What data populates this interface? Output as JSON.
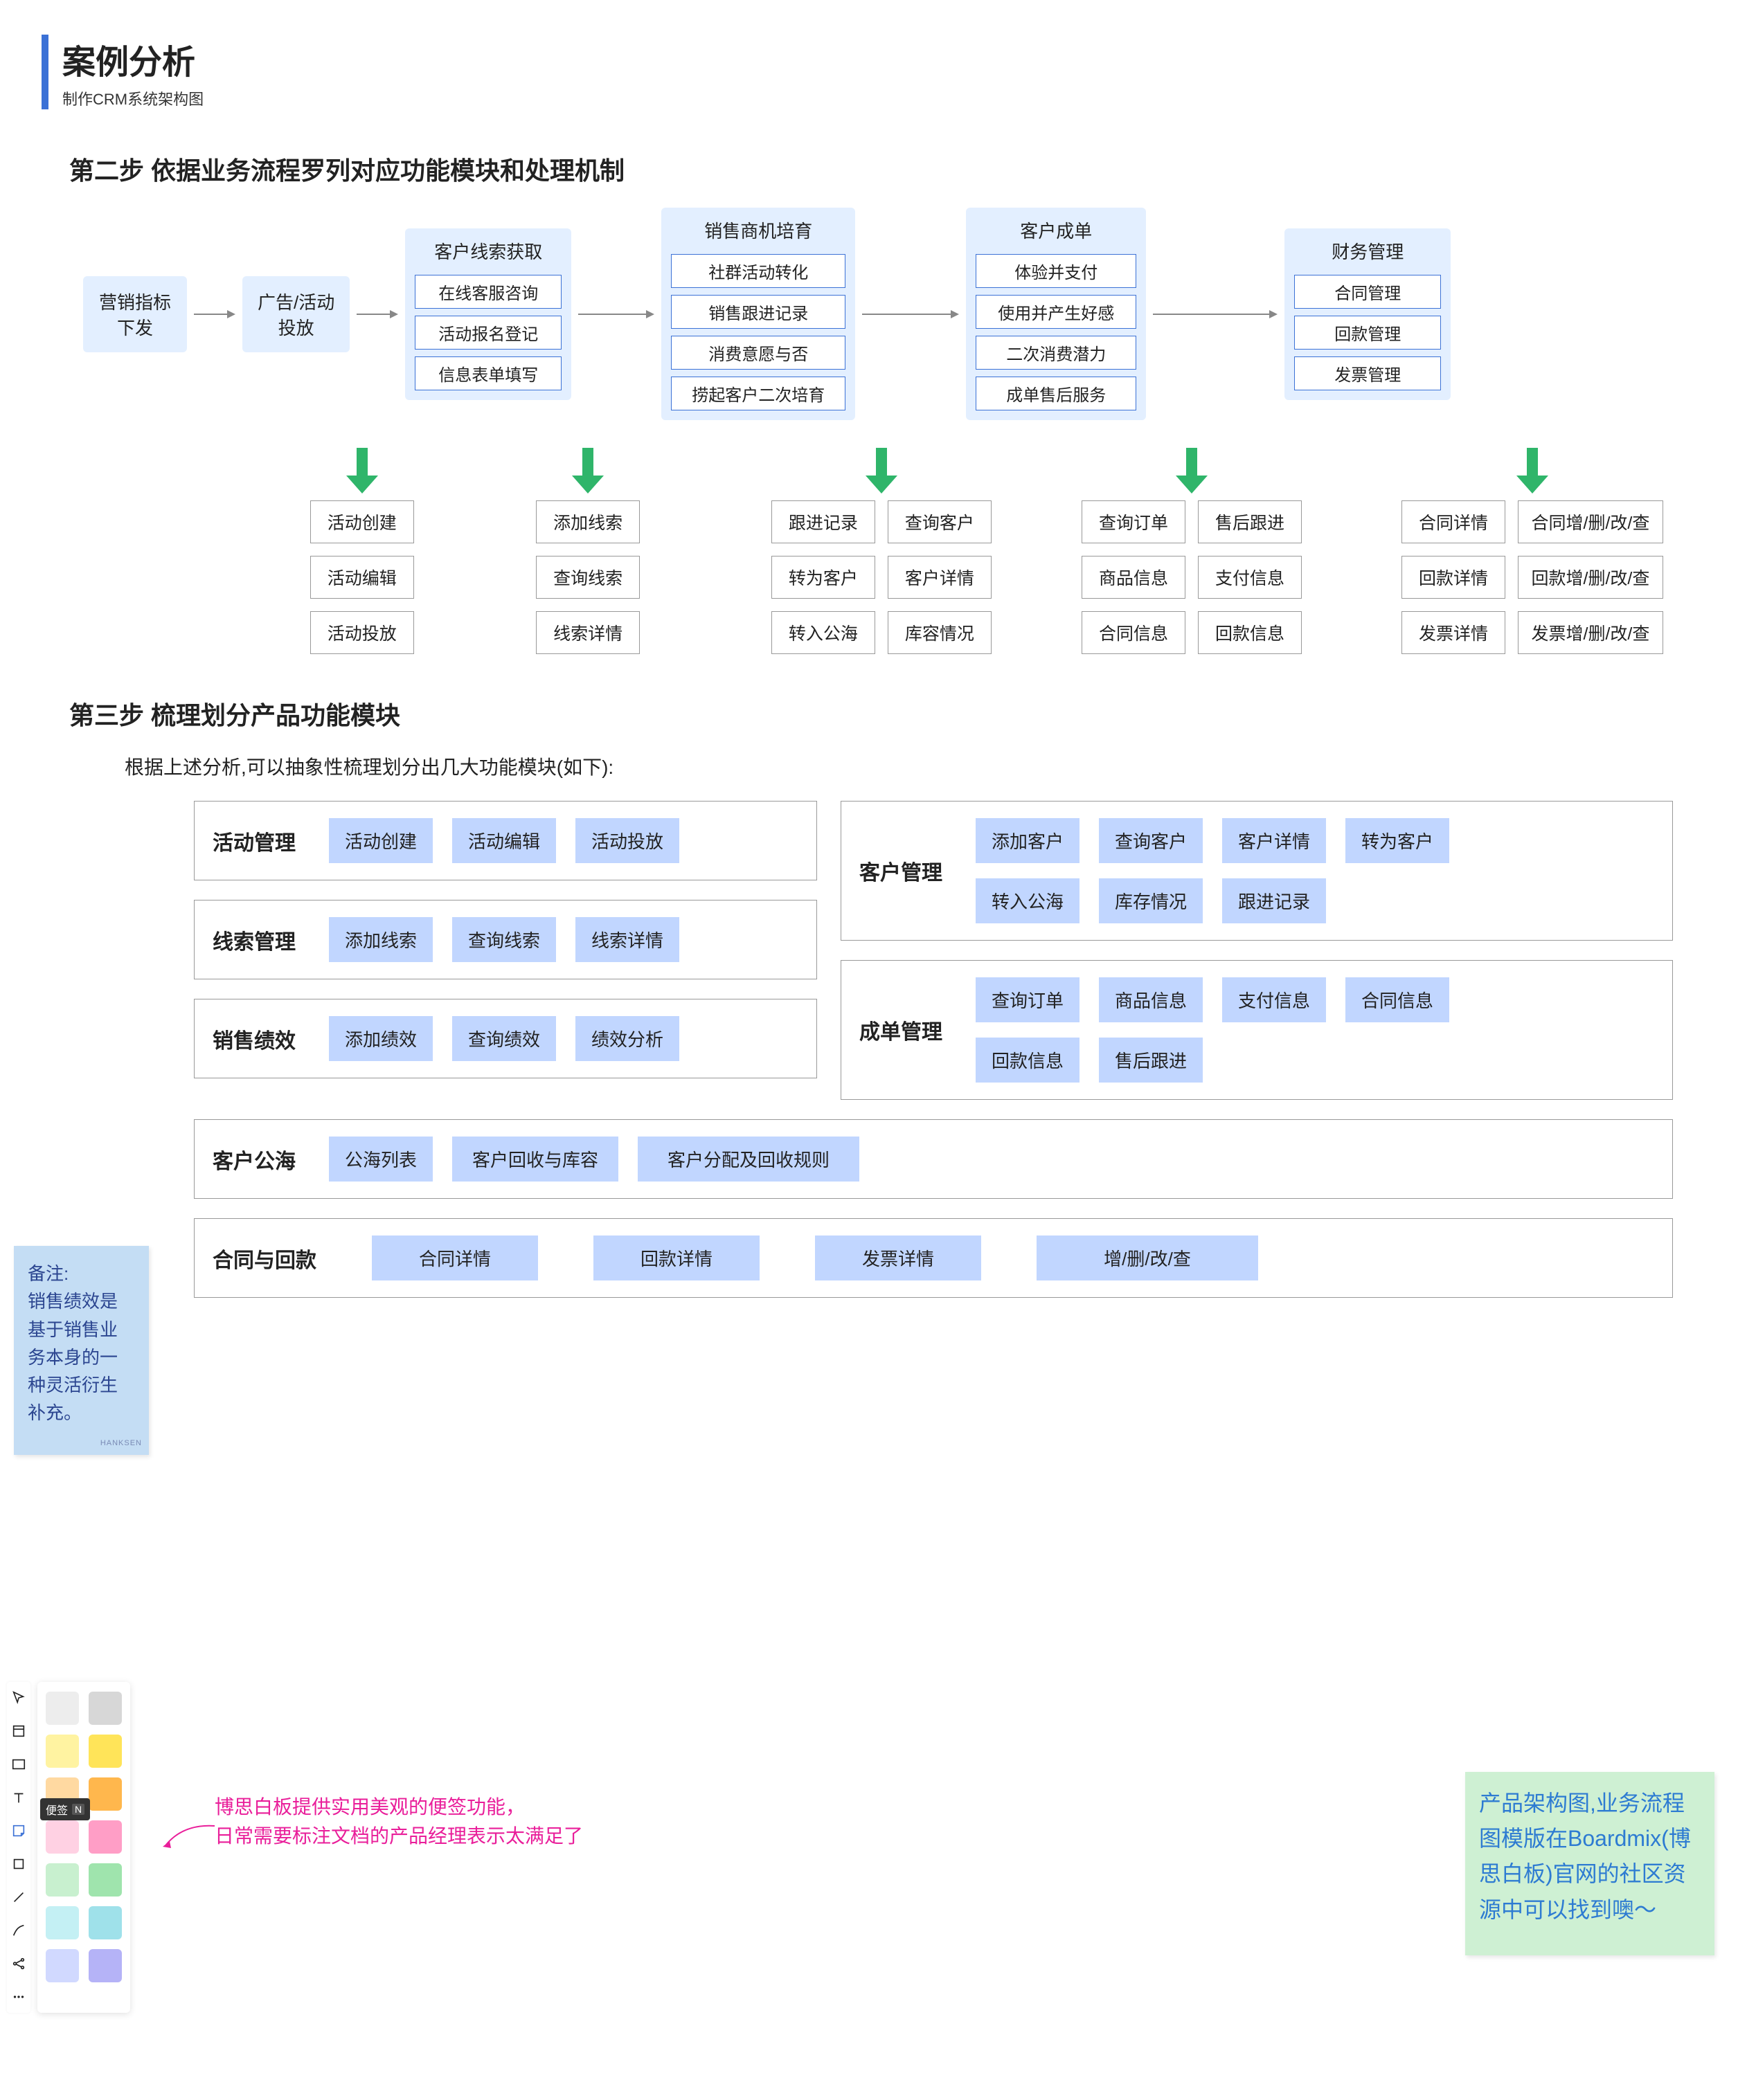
{
  "colors": {
    "accent": "#3b71d6",
    "panel_bg": "#e3efff",
    "chip_bg": "#c1d6ff",
    "box_border": "#999999",
    "arrow_gray": "#888888",
    "arrow_green": "#2fb56a",
    "sticky_blue_bg": "#c4ddf4",
    "sticky_blue_text": "#2b4590",
    "sticky_green_bg": "#cef0d3",
    "sticky_green_text": "#2d7bd2",
    "callout_pink": "#e91e9a"
  },
  "header": {
    "title": "案例分析",
    "subtitle": "制作CRM系统架构图"
  },
  "step2": {
    "heading": "第二步 依据业务流程罗列对应功能模块和处理机制",
    "flow": {
      "node1": {
        "line1": "营销指标",
        "line2": "下发"
      },
      "node2": {
        "line1": "广告/活动",
        "line2": "投放"
      },
      "panel1": {
        "title": "客户线索获取",
        "items": [
          "在线客服咨询",
          "活动报名登记",
          "信息表单填写"
        ]
      },
      "panel2": {
        "title": "销售商机培育",
        "items": [
          "社群活动转化",
          "销售跟进记录",
          "消费意愿与否",
          "捞起客户二次培育"
        ]
      },
      "panel3": {
        "title": "客户成单",
        "items": [
          "体验并支付",
          "使用并产生好感",
          "二次消费潜力",
          "成单售后服务"
        ]
      },
      "panel4": {
        "title": "财务管理",
        "items": [
          "合同管理",
          "回款管理",
          "发票管理"
        ]
      }
    },
    "funcs": {
      "col1": [
        "活动创建",
        "活动编辑",
        "活动投放"
      ],
      "col2": [
        "添加线索",
        "查询线索",
        "线索详情"
      ],
      "col3a": [
        "跟进记录",
        "转为客户",
        "转入公海"
      ],
      "col3b": [
        "查询客户",
        "客户详情",
        "库容情况"
      ],
      "col4a": [
        "查询订单",
        "商品信息",
        "合同信息"
      ],
      "col4b": [
        "售后跟进",
        "支付信息",
        "回款信息"
      ],
      "col5a": [
        "合同详情",
        "回款详情",
        "发票详情"
      ],
      "col5b": [
        "合同增/删/改/查",
        "回款增/删/改/查",
        "发票增/删/改/查"
      ]
    }
  },
  "step3": {
    "heading": "第三步 梳理划分产品功能模块",
    "intro": "根据上述分析,可以抽象性梳理划分出几大功能模块(如下):",
    "left": [
      {
        "name": "活动管理",
        "chips": [
          "活动创建",
          "活动编辑",
          "活动投放"
        ]
      },
      {
        "name": "线索管理",
        "chips": [
          "添加线索",
          "查询线索",
          "线索详情"
        ]
      },
      {
        "name": "销售绩效",
        "chips": [
          "添加绩效",
          "查询绩效",
          "绩效分析"
        ]
      }
    ],
    "right": [
      {
        "name": "客户管理",
        "rows": [
          [
            "添加客户",
            "查询客户",
            "客户详情",
            "转为客户"
          ],
          [
            "转入公海",
            "库存情况",
            "跟进记录"
          ]
        ]
      },
      {
        "name": "成单管理",
        "rows": [
          [
            "查询订单",
            "商品信息",
            "支付信息",
            "合同信息"
          ],
          [
            "回款信息",
            "售后跟进"
          ]
        ]
      }
    ],
    "full": [
      {
        "name": "客户公海",
        "chips": [
          "公海列表",
          "客户回收与库容",
          "客户分配及回收规则"
        ]
      },
      {
        "name": "合同与回款",
        "chips": [
          "合同详情",
          "回款详情",
          "发票详情",
          "增/删/改/查"
        ]
      }
    ]
  },
  "sticky_blue": {
    "title": "备注:",
    "body": "销售绩效是基于销售业务本身的一种灵活衍生补充。",
    "author": "HANKSEN"
  },
  "sticky_green": {
    "body": "产品架构图,业务流程图模版在Boardmix(博思白板)官网的社区资源中可以找到噢～"
  },
  "callout": {
    "line1": "博思白板提供实用美观的便签功能，",
    "line2": "日常需要标注文档的产品经理表示太满足了"
  },
  "toolbar": {
    "tools": [
      "cursor",
      "frame",
      "rect",
      "text",
      "sticky",
      "shape",
      "line",
      "pen",
      "share",
      "more"
    ],
    "tooltip": {
      "label": "便签",
      "key": "N"
    },
    "swatches": [
      [
        "#ededed",
        "#d7d7d7"
      ],
      [
        "#fff3a1",
        "#ffe459"
      ],
      [
        "#ffd9a1",
        "#ffb74d"
      ],
      [
        "#ffd1e3",
        "#ff9ec6"
      ],
      [
        "#c8f0cf",
        "#9fe4ad"
      ],
      [
        "#c4f0f4",
        "#9fe1ea"
      ],
      [
        "#d1d9ff",
        "#b5b3f7"
      ]
    ]
  }
}
